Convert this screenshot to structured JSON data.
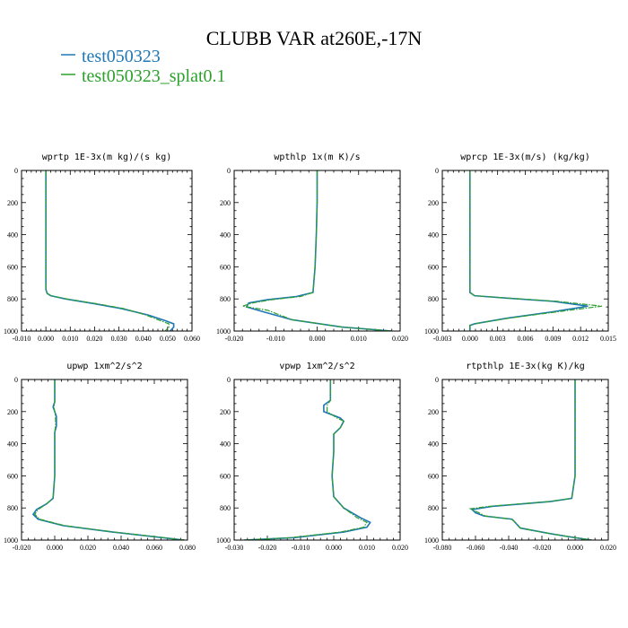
{
  "figure": {
    "title": "CLUBB VAR at260E,-17N"
  },
  "legend": [
    {
      "name": "test050323",
      "color": "#1f77b4"
    },
    {
      "name": "test050323_splat0.1",
      "color": "#2ca02c"
    }
  ],
  "chart_data": [
    {
      "type": "line",
      "title": "wprtp  1E-3x(m kg)/(s kg)",
      "xlim": [
        -0.01,
        0.06
      ],
      "ylim": [
        1000,
        0
      ],
      "xticks": [
        "-0.010",
        "0.000",
        "0.010",
        "0.020",
        "0.030",
        "0.040",
        "0.050",
        "0.060"
      ],
      "xtick_values": [
        -0.01,
        0,
        0.01,
        0.02,
        0.03,
        0.04,
        0.05,
        0.06
      ],
      "yticks": [
        "0",
        "200",
        "400",
        "600",
        "800",
        "1000"
      ],
      "ytick_values": [
        0,
        200,
        400,
        600,
        800,
        1000
      ],
      "series": [
        {
          "name": "test050323",
          "color": "#1f77b4",
          "dashed": false,
          "x": [
            0,
            0,
            0,
            0,
            0,
            0.0005,
            0.002,
            0.008,
            0.02,
            0.031,
            0.042,
            0.049,
            0.0525,
            0.0525,
            0.051
          ],
          "y": [
            0,
            200,
            400,
            600,
            740,
            765,
            780,
            800,
            830,
            860,
            900,
            935,
            955,
            975,
            1000
          ]
        },
        {
          "name": "test050323_splat0.1",
          "color": "#2ca02c",
          "dashed": true,
          "x": [
            0,
            0,
            0,
            0,
            0,
            0.0005,
            0.0022,
            0.0085,
            0.021,
            0.032,
            0.041,
            0.047,
            0.0505,
            0.0505,
            0.049
          ],
          "y": [
            0,
            200,
            400,
            600,
            740,
            765,
            780,
            800,
            830,
            860,
            900,
            935,
            955,
            975,
            1000
          ]
        }
      ]
    },
    {
      "type": "line",
      "title": "wpthlp  1x(m K)/s",
      "xlim": [
        -0.02,
        0.02
      ],
      "ylim": [
        1000,
        0
      ],
      "xticks": [
        "-0.020",
        "-0.010",
        "0.000",
        "0.010",
        "0.020"
      ],
      "xtick_values": [
        -0.02,
        -0.01,
        0,
        0.01,
        0.02
      ],
      "yticks": [
        "0",
        "200",
        "400",
        "600",
        "800",
        "1000"
      ],
      "ytick_values": [
        0,
        200,
        400,
        600,
        800,
        1000
      ],
      "series": [
        {
          "name": "test050323",
          "color": "#1f77b4",
          "dashed": false,
          "x": [
            0,
            0,
            -0.0002,
            -0.0005,
            -0.001,
            -0.005,
            -0.012,
            -0.0165,
            -0.017,
            -0.013,
            -0.006,
            0.006,
            0.018
          ],
          "y": [
            0,
            200,
            400,
            600,
            760,
            785,
            805,
            825,
            850,
            880,
            930,
            975,
            1000
          ]
        },
        {
          "name": "test050323_splat0.1",
          "color": "#2ca02c",
          "dashed": true,
          "x": [
            0,
            0,
            -0.0002,
            -0.0005,
            -0.001,
            -0.004,
            -0.011,
            -0.0155,
            -0.018,
            -0.012,
            -0.006,
            0.006,
            0.018
          ],
          "y": [
            0,
            200,
            400,
            600,
            760,
            785,
            805,
            825,
            845,
            870,
            930,
            975,
            1000
          ]
        }
      ]
    },
    {
      "type": "line",
      "title": "wprcp  1E-3x(m/s) (kg/kg)",
      "xlim": [
        -0.003,
        0.015
      ],
      "ylim": [
        1000,
        0
      ],
      "xticks": [
        "-0.003",
        "0.000",
        "0.003",
        "0.006",
        "0.009",
        "0.012",
        "0.015"
      ],
      "xtick_values": [
        -0.003,
        0,
        0.003,
        0.006,
        0.009,
        0.012,
        0.015
      ],
      "yticks": [
        "0",
        "200",
        "400",
        "600",
        "800",
        "1000"
      ],
      "ytick_values": [
        0,
        200,
        400,
        600,
        800,
        1000
      ],
      "series": [
        {
          "name": "test050323",
          "color": "#1f77b4",
          "dashed": false,
          "x": [
            0,
            0,
            0,
            0,
            0,
            0.0005,
            0.004,
            0.009,
            0.0128,
            0.009,
            0.004,
            0.0005,
            0,
            0
          ],
          "y": [
            0,
            200,
            400,
            600,
            760,
            780,
            795,
            815,
            845,
            880,
            920,
            955,
            965,
            1000
          ]
        },
        {
          "name": "test050323_splat0.1",
          "color": "#2ca02c",
          "dashed": true,
          "x": [
            0,
            0,
            0,
            0,
            0,
            0.0005,
            0.0042,
            0.0095,
            0.0143,
            0.0095,
            0.0042,
            0.0005,
            0,
            0
          ],
          "y": [
            0,
            200,
            400,
            600,
            760,
            780,
            795,
            815,
            845,
            880,
            920,
            955,
            965,
            1000
          ]
        }
      ]
    },
    {
      "type": "line",
      "title": "upwp  1xm^2/s^2",
      "xlim": [
        -0.02,
        0.08
      ],
      "ylim": [
        1000,
        0
      ],
      "xticks": [
        "-0.020",
        "0.000",
        "0.020",
        "0.040",
        "0.060",
        "0.080"
      ],
      "xtick_values": [
        -0.02,
        0,
        0.02,
        0.04,
        0.06,
        0.08
      ],
      "yticks": [
        "0",
        "200",
        "400",
        "600",
        "800",
        "1000"
      ],
      "ytick_values": [
        0,
        200,
        400,
        600,
        800,
        1000
      ],
      "series": [
        {
          "name": "test050323",
          "color": "#1f77b4",
          "dashed": false,
          "x": [
            0,
            0,
            0,
            -0.001,
            0.001,
            0.001,
            0,
            0,
            0,
            -0.001,
            -0.005,
            -0.011,
            -0.013,
            -0.01,
            0.005,
            0.035,
            0.065,
            0.078
          ],
          "y": [
            0,
            100,
            140,
            170,
            230,
            290,
            330,
            400,
            600,
            740,
            775,
            810,
            840,
            870,
            910,
            950,
            985,
            1000
          ]
        },
        {
          "name": "test050323_splat0.1",
          "color": "#2ca02c",
          "dashed": true,
          "x": [
            0,
            0,
            0,
            -0.0005,
            0.0005,
            0.0005,
            0,
            0,
            0,
            -0.001,
            -0.005,
            -0.01,
            -0.012,
            -0.009,
            0.006,
            0.036,
            0.066,
            0.078
          ],
          "y": [
            0,
            100,
            140,
            170,
            230,
            290,
            330,
            400,
            600,
            740,
            775,
            810,
            840,
            870,
            910,
            950,
            985,
            1000
          ]
        }
      ]
    },
    {
      "type": "line",
      "title": "vpwp  1xm^2/s^2",
      "xlim": [
        -0.03,
        0.02
      ],
      "ylim": [
        1000,
        0
      ],
      "xticks": [
        "-0.030",
        "-0.020",
        "-0.010",
        "0.000",
        "0.010",
        "0.020"
      ],
      "xtick_values": [
        -0.03,
        -0.02,
        -0.01,
        0,
        0.01,
        0.02
      ],
      "yticks": [
        "0",
        "200",
        "400",
        "600",
        "800",
        "1000"
      ],
      "ytick_values": [
        0,
        200,
        400,
        600,
        800,
        1000
      ],
      "series": [
        {
          "name": "test050323",
          "color": "#1f77b4",
          "dashed": false,
          "x": [
            -0.001,
            -0.001,
            -0.001,
            -0.003,
            -0.003,
            0.002,
            0.003,
            0.002,
            0,
            0,
            -0.0005,
            0,
            0.003,
            0.008,
            0.011,
            0.01,
            0.003,
            -0.012,
            -0.027
          ],
          "y": [
            0,
            100,
            130,
            160,
            200,
            240,
            260,
            300,
            340,
            450,
            600,
            730,
            800,
            860,
            890,
            920,
            950,
            985,
            1000
          ]
        },
        {
          "name": "test050323_splat0.1",
          "color": "#2ca02c",
          "dashed": true,
          "x": [
            -0.001,
            -0.001,
            -0.001,
            -0.002,
            -0.002,
            0.001,
            0.003,
            0.002,
            0,
            0,
            -0.0005,
            0,
            0.003,
            0.007,
            0.01,
            0.009,
            0.002,
            -0.013,
            -0.027
          ],
          "y": [
            0,
            100,
            130,
            160,
            200,
            240,
            260,
            300,
            340,
            450,
            600,
            730,
            800,
            860,
            890,
            920,
            950,
            985,
            1000
          ]
        }
      ]
    },
    {
      "type": "line",
      "title": "rtpthlp  1E-3x(kg K)/kg",
      "xlim": [
        -0.08,
        0.02
      ],
      "ylim": [
        1000,
        0
      ],
      "xticks": [
        "-0.080",
        "-0.060",
        "-0.040",
        "-0.020",
        "0.000",
        "0.020"
      ],
      "xtick_values": [
        -0.08,
        -0.06,
        -0.04,
        -0.02,
        0,
        0.02
      ],
      "yticks": [
        "0",
        "200",
        "400",
        "600",
        "800",
        "1000"
      ],
      "ytick_values": [
        0,
        200,
        400,
        600,
        800,
        1000
      ],
      "series": [
        {
          "name": "test050323",
          "color": "#1f77b4",
          "dashed": false,
          "x": [
            0,
            0,
            0,
            0,
            -0.002,
            -0.015,
            -0.05,
            -0.062,
            -0.06,
            -0.055,
            -0.038,
            -0.037,
            -0.033,
            -0.015,
            0,
            0.01
          ],
          "y": [
            0,
            200,
            400,
            600,
            740,
            760,
            790,
            810,
            830,
            850,
            870,
            880,
            925,
            960,
            985,
            1000
          ]
        },
        {
          "name": "test050323_splat0.1",
          "color": "#2ca02c",
          "dashed": true,
          "x": [
            0,
            0,
            0,
            0,
            -0.002,
            -0.016,
            -0.052,
            -0.063,
            -0.059,
            -0.054,
            -0.038,
            -0.037,
            -0.033,
            -0.015,
            0,
            0.01
          ],
          "y": [
            0,
            200,
            400,
            600,
            740,
            760,
            790,
            805,
            825,
            850,
            870,
            880,
            925,
            960,
            985,
            1000
          ]
        }
      ]
    }
  ]
}
